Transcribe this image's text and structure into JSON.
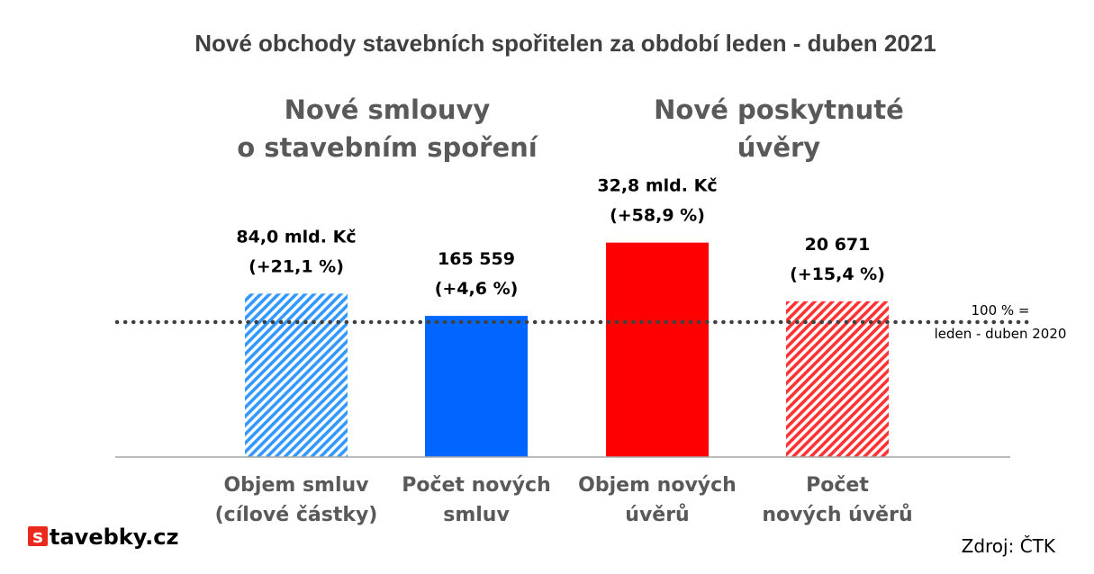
{
  "chart_data": {
    "type": "bar",
    "title": "Nové obchody stavebních spořitelen za období leden - duben 2021",
    "groups": [
      {
        "title_lines": [
          "Nové smlouvy",
          "o stavebním spoření"
        ]
      },
      {
        "title_lines": [
          "Nové poskytnuté",
          "úvěry"
        ]
      }
    ],
    "categories": [
      [
        "Objem smluv",
        "(cílové částky)"
      ],
      [
        "Počet  nových",
        "smluv"
      ],
      [
        "Objem nových",
        "úvěrů"
      ],
      [
        "Počet",
        "nových úvěrů"
      ]
    ],
    "values_percent_of_reference": [
      121.1,
      104.6,
      158.9,
      115.4
    ],
    "value_labels": [
      [
        "84,0 mld. Kč",
        "(+21,1 %)"
      ],
      [
        "165 559",
        "(+4,6 %)"
      ],
      [
        "32,8 mld. Kč",
        "(+58,9 %)"
      ],
      [
        "20 671",
        "(+15,4 %)"
      ]
    ],
    "fills": [
      "hatched",
      "solid",
      "solid",
      "hatched"
    ],
    "colors": [
      "#3399ff",
      "#0066ff",
      "#ff0000",
      "#ff3333"
    ],
    "reference": {
      "value": 100,
      "label_lines": [
        "100 % =",
        "leden - duben 2020"
      ],
      "style": "dotted",
      "color": "#404040"
    },
    "ylim": [
      0,
      160
    ],
    "source": "Zdroj: ČTK"
  },
  "logo": {
    "letter": "s",
    "text": "tavebky.cz",
    "color": "#e8291c"
  }
}
